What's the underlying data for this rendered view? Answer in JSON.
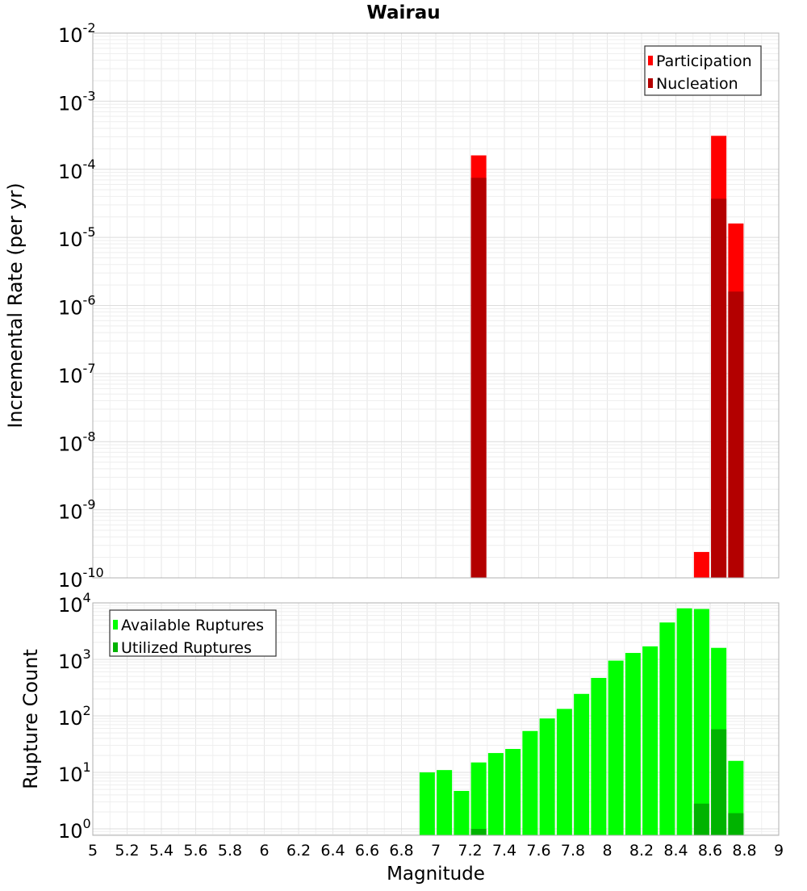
{
  "chart_data": [
    {
      "type": "bar",
      "title": "Wairau",
      "ylabel": "Incremental Rate (per yr)",
      "xlim": [
        5,
        9
      ],
      "ylim": [
        1e-10,
        0.01
      ],
      "yscale": "log",
      "grid": true,
      "legend_position": "top-right",
      "yticks": [
        {
          "base": "10",
          "exp": "-10"
        },
        {
          "base": "10",
          "exp": "-9"
        },
        {
          "base": "10",
          "exp": "-8"
        },
        {
          "base": "10",
          "exp": "-7"
        },
        {
          "base": "10",
          "exp": "-6"
        },
        {
          "base": "10",
          "exp": "-5"
        },
        {
          "base": "10",
          "exp": "-4"
        },
        {
          "base": "10",
          "exp": "-3"
        },
        {
          "base": "10",
          "exp": "-2"
        }
      ],
      "series": [
        {
          "name": "Participation",
          "color": "#ff0000",
          "x": [
            7.25,
            8.55,
            8.65,
            8.75
          ],
          "values": [
            0.00016,
            2.4e-10,
            0.00031,
            1.6e-05
          ]
        },
        {
          "name": "Nucleation",
          "color": "#b30000",
          "x": [
            7.25,
            8.65,
            8.75
          ],
          "values": [
            7.5e-05,
            3.7e-05,
            1.6e-06
          ]
        }
      ]
    },
    {
      "type": "bar",
      "ylabel": "Rupture Count",
      "xlabel": "Magnitude",
      "xlim": [
        5,
        9
      ],
      "ylim": [
        0.77,
        10000
      ],
      "yscale": "log",
      "grid": true,
      "legend_position": "top-left",
      "xticks": [
        "5",
        "5.2",
        "5.4",
        "5.6",
        "5.8",
        "6",
        "6.2",
        "6.4",
        "6.6",
        "6.8",
        "7",
        "7.2",
        "7.4",
        "7.6",
        "7.8",
        "8",
        "8.2",
        "8.4",
        "8.6",
        "8.8",
        "9"
      ],
      "yticks": [
        {
          "base": "10",
          "exp": "0"
        },
        {
          "base": "10",
          "exp": "1"
        },
        {
          "base": "10",
          "exp": "2"
        },
        {
          "base": "10",
          "exp": "3"
        },
        {
          "base": "10",
          "exp": "4"
        }
      ],
      "series": [
        {
          "name": "Available Ruptures",
          "color": "#00ff00",
          "x": [
            6.95,
            7.05,
            7.15,
            7.25,
            7.35,
            7.45,
            7.55,
            7.65,
            7.75,
            7.85,
            7.95,
            8.05,
            8.15,
            8.25,
            8.35,
            8.45,
            8.55,
            8.65,
            8.75
          ],
          "values": [
            10,
            11,
            4.7,
            15,
            22,
            26,
            54,
            90,
            133,
            245,
            470,
            950,
            1300,
            1700,
            4500,
            8000,
            7800,
            1600,
            16
          ]
        },
        {
          "name": "Utilized Ruptures",
          "color": "#00b300",
          "x": [
            7.25,
            8.55,
            8.65,
            8.75
          ],
          "values": [
            1,
            2.8,
            58,
            1.9
          ]
        }
      ]
    }
  ]
}
